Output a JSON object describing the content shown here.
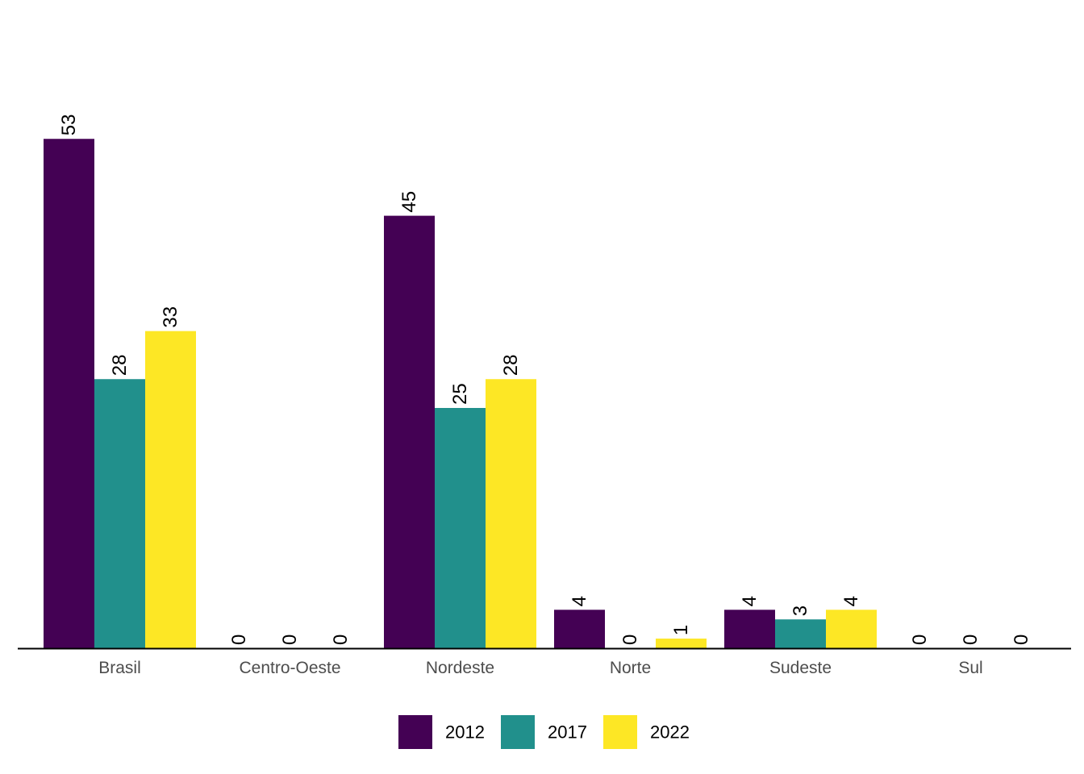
{
  "chart_data": {
    "type": "bar",
    "categories": [
      "Brasil",
      "Centro-Oeste",
      "Nordeste",
      "Norte",
      "Sudeste",
      "Sul"
    ],
    "series": [
      {
        "name": "2012",
        "color": "#440154",
        "values": [
          53,
          0,
          45,
          4,
          4,
          0
        ]
      },
      {
        "name": "2017",
        "color": "#21908C",
        "values": [
          28,
          0,
          25,
          0,
          3,
          0
        ]
      },
      {
        "name": "2022",
        "color": "#FDE725",
        "values": [
          33,
          0,
          28,
          1,
          4,
          0
        ]
      }
    ],
    "title": "",
    "xlabel": "",
    "ylabel": "",
    "ylim": [
      0,
      60
    ],
    "grid": false,
    "legend": "bottom",
    "data_labels": true
  }
}
